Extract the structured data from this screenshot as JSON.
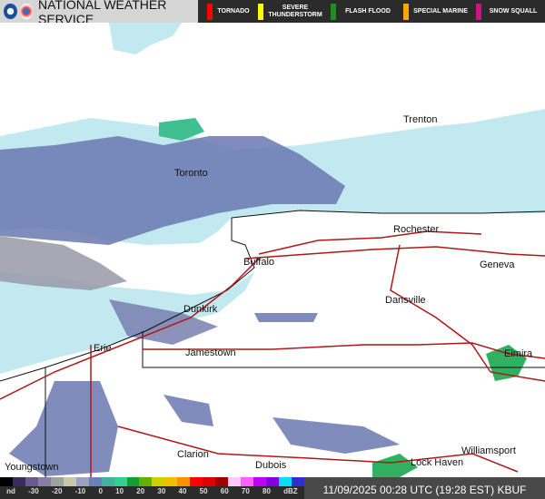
{
  "header": {
    "title": "NATIONAL WEATHER SERVICE",
    "logos": [
      "noaa-logo",
      "nws-logo"
    ]
  },
  "warnings": [
    {
      "label": "TORNADO",
      "color": "#ff0000"
    },
    {
      "label": "SEVERE THUNDERSTORM",
      "color": "#ffff00"
    },
    {
      "label": "FLASH FLOOD",
      "color": "#228b22"
    },
    {
      "label": "SPECIAL MARINE",
      "color": "#ffa500"
    },
    {
      "label": "SNOW SQUALL",
      "color": "#c71585"
    }
  ],
  "cities": [
    {
      "name": "Trenton"
    },
    {
      "name": "Toronto"
    },
    {
      "name": "Rochester"
    },
    {
      "name": "Buffalo"
    },
    {
      "name": "Geneva"
    },
    {
      "name": "Dansville"
    },
    {
      "name": "Dunkirk"
    },
    {
      "name": "Erie"
    },
    {
      "name": "Jamestown"
    },
    {
      "name": "Elmira"
    },
    {
      "name": "Clarion"
    },
    {
      "name": "Williamsport"
    },
    {
      "name": "Dubois"
    },
    {
      "name": "Lock Haven"
    },
    {
      "name": "Youngstown"
    }
  ],
  "legend": {
    "ticks": [
      "nd",
      "-30",
      "-20",
      "-10",
      "0",
      "10",
      "20",
      "30",
      "40",
      "50",
      "60",
      "70",
      "80",
      "dBZ"
    ],
    "colors": [
      "#000",
      "#3a2a60",
      "#6a5a90",
      "#8a7ca8",
      "#a0a0a0",
      "#c8c8a8",
      "#9aa0c0",
      "#6a80b8",
      "#48b0a0",
      "#30d090",
      "#10a030",
      "#60b000",
      "#d0d000",
      "#f0c000",
      "#ff9000",
      "#ff0000",
      "#e00000",
      "#a00000",
      "#ffc8ff",
      "#ff60ff",
      "#c000ff",
      "#8000e0",
      "#00e0f0",
      "#3030d0"
    ]
  },
  "timestamp": "11/09/2025 00:28 UTC (19:28 EST)",
  "station": "KBUF"
}
